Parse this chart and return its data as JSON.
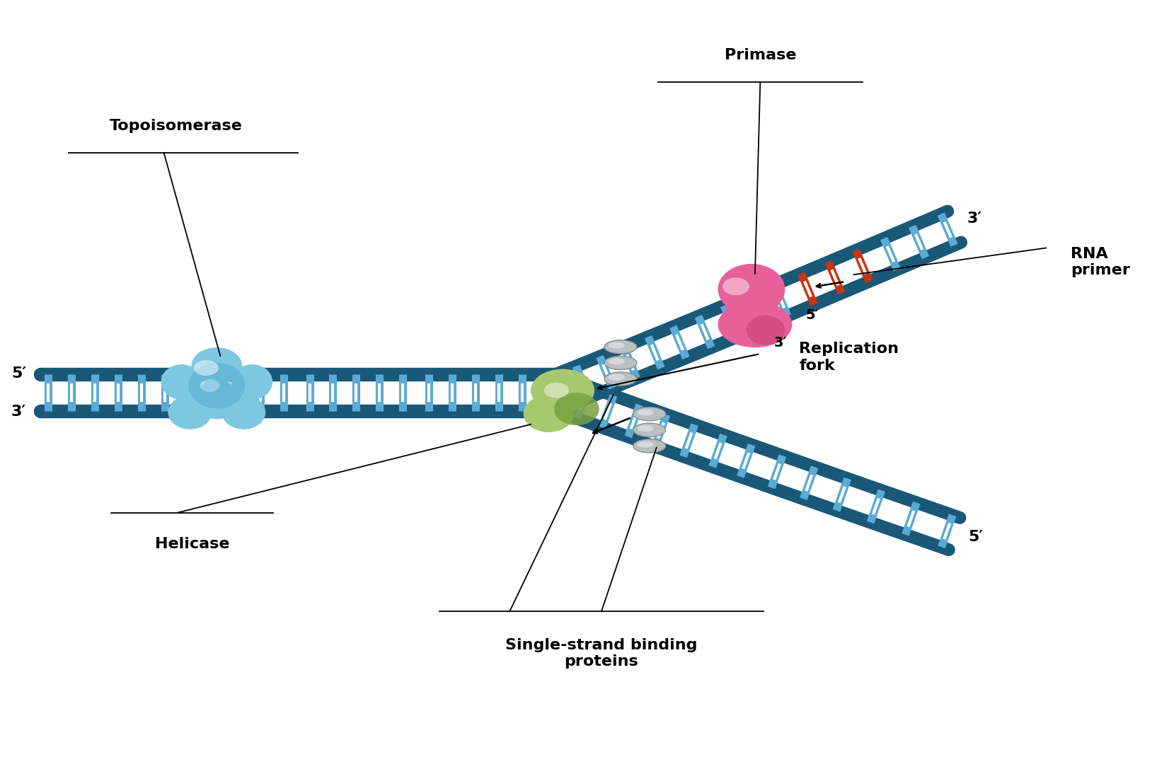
{
  "bg_color": "#ffffff",
  "dna_dark": "#1a5878",
  "dna_mid": "#2070a0",
  "dna_light": "#4a9cc8",
  "rung_color": "#5baad4",
  "rung_white": "#c8e4f0",
  "topo_color1": "#7dc8e0",
  "topo_color2": "#55aacf",
  "topo_highlight": "#aaddf0",
  "helicase_color": "#90d0e8",
  "primase_color": "#e8609a",
  "primase_color2": "#c04070",
  "primase_highlight": "#f0a0c0",
  "ssb_color": "#a8c870",
  "ssb_color2": "#78a040",
  "ssb_highlight": "#c8e898",
  "coil_color": "#b8c0c0",
  "coil_color2": "#808a8a",
  "rna_color": "#cc3311",
  "rna_color2": "#ee5522",
  "label_topoisomerase": "Topoisomerase",
  "label_helicase": "Helicase",
  "label_primase": "Primase",
  "label_replication_fork": "Replication\nfork",
  "label_ssb": "Single-strand binding\nproteins",
  "label_rna_primer": "RNA\nprimer",
  "label_5prime_left": "5′",
  "label_3prime_left": "3′",
  "label_3prime_upper": "3′",
  "label_5prime_lower": "5′",
  "label_3prime_rna": "3′",
  "label_5prime_rna": "5′"
}
